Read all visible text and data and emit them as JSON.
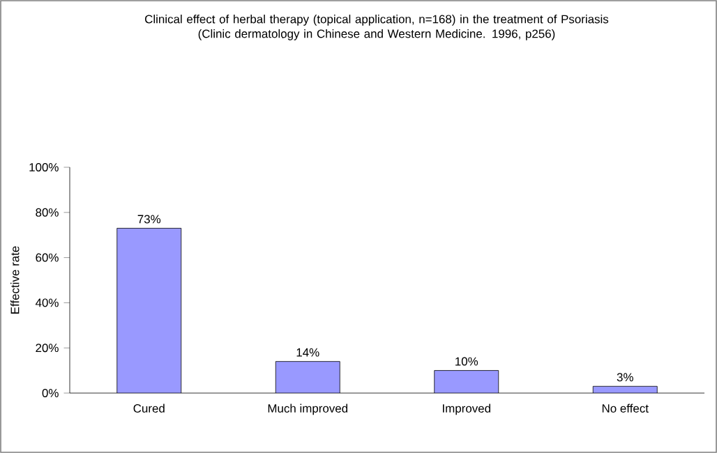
{
  "chart_data": {
    "type": "bar",
    "title": "Clinical effect of herbal therapy (topical application, n=168) in the treatment of Psoriasis",
    "subtitle": "(Clinic dermatology in Chinese and Western Medicine. 1996, p256)",
    "ylabel": "Effective rate",
    "categories": [
      "Cured",
      "Much improved",
      "Improved",
      "No effect"
    ],
    "values": [
      73,
      14,
      10,
      3
    ],
    "value_labels": [
      "73%",
      "14%",
      "10%",
      "3%"
    ],
    "color": "#9999ff",
    "ylim": [
      0,
      100
    ],
    "yticks": [
      {
        "value": 0,
        "label": "0%"
      },
      {
        "value": 20,
        "label": "20%"
      },
      {
        "value": 40,
        "label": "40%"
      },
      {
        "value": 60,
        "label": "60%"
      },
      {
        "value": 80,
        "label": "80%"
      },
      {
        "value": 100,
        "label": "100%"
      }
    ],
    "grid": false
  }
}
